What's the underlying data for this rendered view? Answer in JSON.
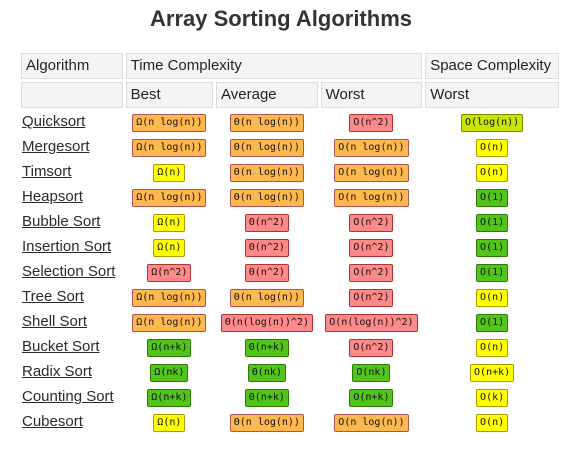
{
  "title": "Array Sorting Algorithms",
  "headers": {
    "algorithm": "Algorithm",
    "time": "Time Complexity",
    "space": "Space Complexity",
    "best": "Best",
    "average": "Average",
    "worst": "Worst",
    "space_worst": "Worst"
  },
  "colors": {
    "red": "#ff8989",
    "orange": "#ffb84d",
    "yellow": "#ffff00",
    "lime": "#c8e600",
    "green": "#52c41a"
  },
  "rows": [
    {
      "name": "Quicksort",
      "best": {
        "v": "Ω(n log(n))",
        "c": "orange"
      },
      "avg": {
        "v": "Θ(n log(n))",
        "c": "orange"
      },
      "worst": {
        "v": "O(n^2)",
        "c": "red"
      },
      "space": {
        "v": "O(log(n))",
        "c": "lime"
      }
    },
    {
      "name": "Mergesort",
      "best": {
        "v": "Ω(n log(n))",
        "c": "orange"
      },
      "avg": {
        "v": "Θ(n log(n))",
        "c": "orange"
      },
      "worst": {
        "v": "O(n log(n))",
        "c": "orange"
      },
      "space": {
        "v": "O(n)",
        "c": "yellow"
      }
    },
    {
      "name": "Timsort",
      "best": {
        "v": "Ω(n)",
        "c": "yellow"
      },
      "avg": {
        "v": "Θ(n log(n))",
        "c": "orange"
      },
      "worst": {
        "v": "O(n log(n))",
        "c": "orange"
      },
      "space": {
        "v": "O(n)",
        "c": "yellow"
      }
    },
    {
      "name": "Heapsort",
      "best": {
        "v": "Ω(n log(n))",
        "c": "orange"
      },
      "avg": {
        "v": "Θ(n log(n))",
        "c": "orange"
      },
      "worst": {
        "v": "O(n log(n))",
        "c": "orange"
      },
      "space": {
        "v": "O(1)",
        "c": "green"
      }
    },
    {
      "name": "Bubble Sort",
      "best": {
        "v": "Ω(n)",
        "c": "yellow"
      },
      "avg": {
        "v": "Θ(n^2)",
        "c": "red"
      },
      "worst": {
        "v": "O(n^2)",
        "c": "red"
      },
      "space": {
        "v": "O(1)",
        "c": "green"
      }
    },
    {
      "name": "Insertion Sort",
      "best": {
        "v": "Ω(n)",
        "c": "yellow"
      },
      "avg": {
        "v": "Θ(n^2)",
        "c": "red"
      },
      "worst": {
        "v": "O(n^2)",
        "c": "red"
      },
      "space": {
        "v": "O(1)",
        "c": "green"
      }
    },
    {
      "name": "Selection Sort",
      "best": {
        "v": "Ω(n^2)",
        "c": "red"
      },
      "avg": {
        "v": "Θ(n^2)",
        "c": "red"
      },
      "worst": {
        "v": "O(n^2)",
        "c": "red"
      },
      "space": {
        "v": "O(1)",
        "c": "green"
      }
    },
    {
      "name": "Tree Sort",
      "best": {
        "v": "Ω(n log(n))",
        "c": "orange"
      },
      "avg": {
        "v": "Θ(n log(n))",
        "c": "orange"
      },
      "worst": {
        "v": "O(n^2)",
        "c": "red"
      },
      "space": {
        "v": "O(n)",
        "c": "yellow"
      }
    },
    {
      "name": "Shell Sort",
      "best": {
        "v": "Ω(n log(n))",
        "c": "orange"
      },
      "avg": {
        "v": "Θ(n(log(n))^2)",
        "c": "red"
      },
      "worst": {
        "v": "O(n(log(n))^2)",
        "c": "red"
      },
      "space": {
        "v": "O(1)",
        "c": "green"
      }
    },
    {
      "name": "Bucket Sort",
      "best": {
        "v": "Ω(n+k)",
        "c": "green"
      },
      "avg": {
        "v": "Θ(n+k)",
        "c": "green"
      },
      "worst": {
        "v": "O(n^2)",
        "c": "red"
      },
      "space": {
        "v": "O(n)",
        "c": "yellow"
      }
    },
    {
      "name": "Radix Sort",
      "best": {
        "v": "Ω(nk)",
        "c": "green"
      },
      "avg": {
        "v": "Θ(nk)",
        "c": "green"
      },
      "worst": {
        "v": "O(nk)",
        "c": "green"
      },
      "space": {
        "v": "O(n+k)",
        "c": "yellow"
      }
    },
    {
      "name": "Counting Sort",
      "best": {
        "v": "Ω(n+k)",
        "c": "green"
      },
      "avg": {
        "v": "Θ(n+k)",
        "c": "green"
      },
      "worst": {
        "v": "O(n+k)",
        "c": "green"
      },
      "space": {
        "v": "O(k)",
        "c": "yellow"
      }
    },
    {
      "name": "Cubesort",
      "best": {
        "v": "Ω(n)",
        "c": "yellow"
      },
      "avg": {
        "v": "Θ(n log(n))",
        "c": "orange"
      },
      "worst": {
        "v": "O(n log(n))",
        "c": "orange"
      },
      "space": {
        "v": "O(n)",
        "c": "yellow"
      }
    }
  ]
}
